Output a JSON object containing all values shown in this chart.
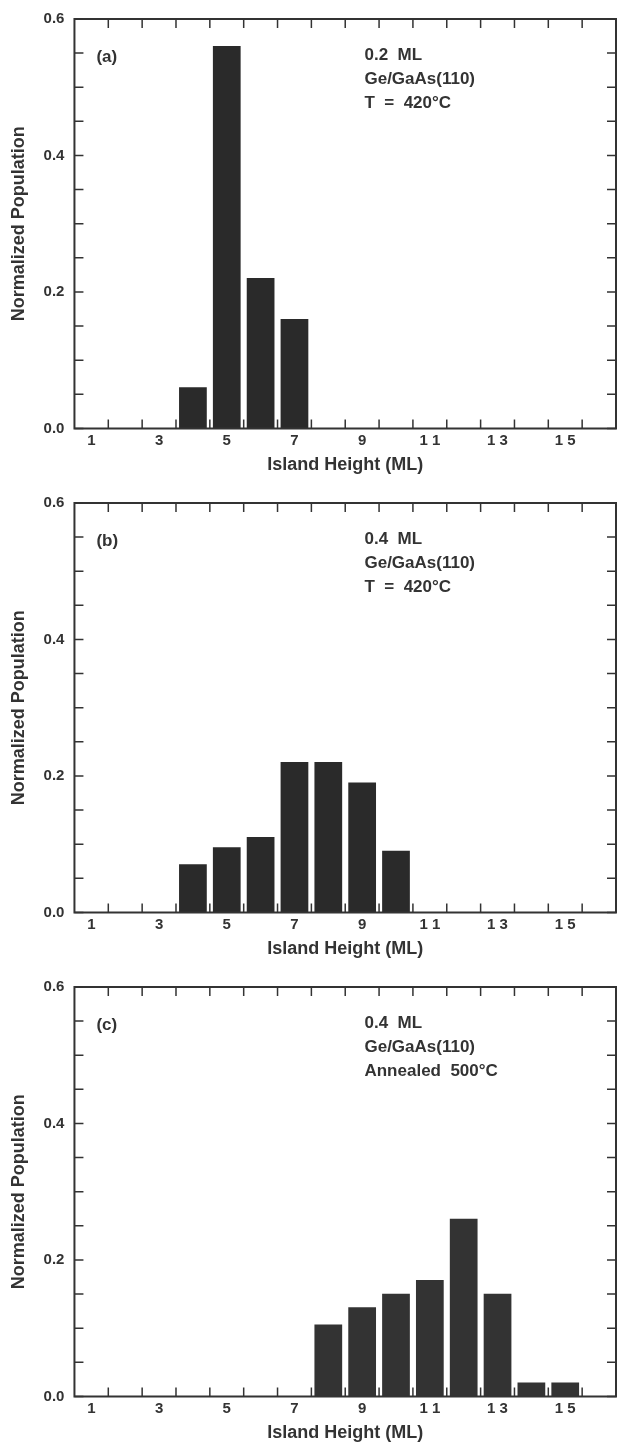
{
  "chart_data": [
    {
      "type": "bar",
      "x": [
        4,
        5,
        6,
        7
      ],
      "values": [
        0.06,
        0.56,
        0.22,
        0.16
      ],
      "color": "#2a2a2a",
      "xlabel": "Island Height (ML)",
      "ylabel": "Normalized Population",
      "xlim": [
        0.5,
        16.5
      ],
      "xticks": [
        1,
        {
          "value": 1.5,
          "label": null
        },
        {
          "value": 2.5,
          "label": null
        },
        3,
        {
          "value": 3.5,
          "label": null
        },
        {
          "value": 4.5,
          "label": null
        },
        5,
        {
          "value": 5.5,
          "label": null
        },
        {
          "value": 6.5,
          "label": null
        },
        7,
        {
          "value": 7.5,
          "label": null
        },
        {
          "value": 8.5,
          "label": null
        },
        9,
        {
          "value": 9.5,
          "label": null
        },
        {
          "value": 10.5,
          "label": null
        },
        {
          "value": 11,
          "label": "1 1"
        },
        {
          "value": 11.5,
          "label": null
        },
        {
          "value": 12.5,
          "label": null
        },
        {
          "value": 13,
          "label": "1 3"
        },
        {
          "value": 13.5,
          "label": null
        },
        {
          "value": 14.5,
          "label": null
        },
        {
          "value": 15,
          "label": "1 5"
        },
        {
          "value": 15.5,
          "label": null
        }
      ],
      "ylim": [
        0,
        0.6
      ],
      "yticks": [
        {
          "value": 0,
          "label": "0.0"
        },
        {
          "value": 0.05,
          "label": null
        },
        {
          "value": 0.1,
          "label": null
        },
        {
          "value": 0.15,
          "label": null
        },
        {
          "value": 0.2,
          "label": "0.2"
        },
        {
          "value": 0.25,
          "label": null
        },
        {
          "value": 0.3,
          "label": null
        },
        {
          "value": 0.35,
          "label": null
        },
        {
          "value": 0.4,
          "label": "0.4"
        },
        {
          "value": 0.45,
          "label": null
        },
        {
          "value": 0.5,
          "label": null
        },
        {
          "value": 0.55,
          "label": null
        },
        {
          "value": 0.6,
          "label": "0.6"
        }
      ],
      "annotations": [
        "(a)",
        "0.2  ML",
        "Ge/GaAs(110)",
        "T  =  420°C"
      ]
    },
    {
      "type": "bar",
      "x": [
        4,
        5,
        6,
        7,
        8,
        9,
        10
      ],
      "values": [
        0.07,
        0.095,
        0.11,
        0.22,
        0.22,
        0.19,
        0.09
      ],
      "color": "#2a2a2a",
      "xlabel": "Island Height (ML)",
      "ylabel": "Normalized Population",
      "xlim": [
        0.5,
        16.5
      ],
      "xticks": [
        1,
        {
          "value": 1.5,
          "label": null
        },
        {
          "value": 2.5,
          "label": null
        },
        3,
        {
          "value": 3.5,
          "label": null
        },
        {
          "value": 4.5,
          "label": null
        },
        5,
        {
          "value": 5.5,
          "label": null
        },
        {
          "value": 6.5,
          "label": null
        },
        7,
        {
          "value": 7.5,
          "label": null
        },
        {
          "value": 8.5,
          "label": null
        },
        9,
        {
          "value": 9.5,
          "label": null
        },
        {
          "value": 10.5,
          "label": null
        },
        {
          "value": 11,
          "label": "1 1"
        },
        {
          "value": 11.5,
          "label": null
        },
        {
          "value": 12.5,
          "label": null
        },
        {
          "value": 13,
          "label": "1 3"
        },
        {
          "value": 13.5,
          "label": null
        },
        {
          "value": 14.5,
          "label": null
        },
        {
          "value": 15,
          "label": "1 5"
        },
        {
          "value": 15.5,
          "label": null
        }
      ],
      "ylim": [
        0,
        0.6
      ],
      "yticks": [
        {
          "value": 0,
          "label": "0.0"
        },
        {
          "value": 0.05,
          "label": null
        },
        {
          "value": 0.1,
          "label": null
        },
        {
          "value": 0.15,
          "label": null
        },
        {
          "value": 0.2,
          "label": "0.2"
        },
        {
          "value": 0.25,
          "label": null
        },
        {
          "value": 0.3,
          "label": null
        },
        {
          "value": 0.35,
          "label": null
        },
        {
          "value": 0.4,
          "label": "0.4"
        },
        {
          "value": 0.45,
          "label": null
        },
        {
          "value": 0.5,
          "label": null
        },
        {
          "value": 0.55,
          "label": null
        },
        {
          "value": 0.6,
          "label": "0.6"
        }
      ],
      "annotations": [
        "(b)",
        "0.4  ML",
        "Ge/GaAs(110)",
        "T  =  420°C"
      ]
    },
    {
      "type": "bar",
      "x": [
        8,
        9,
        10,
        11,
        12,
        13,
        14,
        15
      ],
      "values": [
        0.105,
        0.13,
        0.15,
        0.17,
        0.26,
        0.15,
        0.02,
        0.02
      ],
      "color": "#333333",
      "xlabel": "Island Height (ML)",
      "ylabel": "Normalized Population",
      "xlim": [
        0.5,
        16.5
      ],
      "xticks": [
        1,
        {
          "value": 1.5,
          "label": null
        },
        {
          "value": 2.5,
          "label": null
        },
        3,
        {
          "value": 3.5,
          "label": null
        },
        {
          "value": 4.5,
          "label": null
        },
        5,
        {
          "value": 5.5,
          "label": null
        },
        {
          "value": 6.5,
          "label": null
        },
        7,
        {
          "value": 7.5,
          "label": null
        },
        {
          "value": 8.5,
          "label": null
        },
        9,
        {
          "value": 9.5,
          "label": null
        },
        {
          "value": 10.5,
          "label": null
        },
        {
          "value": 11,
          "label": "1 1"
        },
        {
          "value": 11.5,
          "label": null
        },
        {
          "value": 12.5,
          "label": null
        },
        {
          "value": 13,
          "label": "1 3"
        },
        {
          "value": 13.5,
          "label": null
        },
        {
          "value": 14.5,
          "label": null
        },
        {
          "value": 15,
          "label": "1 5"
        },
        {
          "value": 15.5,
          "label": null
        }
      ],
      "ylim": [
        0,
        0.6
      ],
      "yticks": [
        {
          "value": 0,
          "label": "0.0"
        },
        {
          "value": 0.05,
          "label": null
        },
        {
          "value": 0.1,
          "label": null
        },
        {
          "value": 0.15,
          "label": null
        },
        {
          "value": 0.2,
          "label": "0.2"
        },
        {
          "value": 0.25,
          "label": null
        },
        {
          "value": 0.3,
          "label": null
        },
        {
          "value": 0.35,
          "label": null
        },
        {
          "value": 0.4,
          "label": "0.4"
        },
        {
          "value": 0.45,
          "label": null
        },
        {
          "value": 0.5,
          "label": null
        },
        {
          "value": 0.55,
          "label": null
        },
        {
          "value": 0.6,
          "label": "0.6"
        }
      ],
      "annotations": [
        "(c)",
        "0.4  ML",
        "Ge/GaAs(110)",
        "Annealed  500°C"
      ]
    }
  ]
}
